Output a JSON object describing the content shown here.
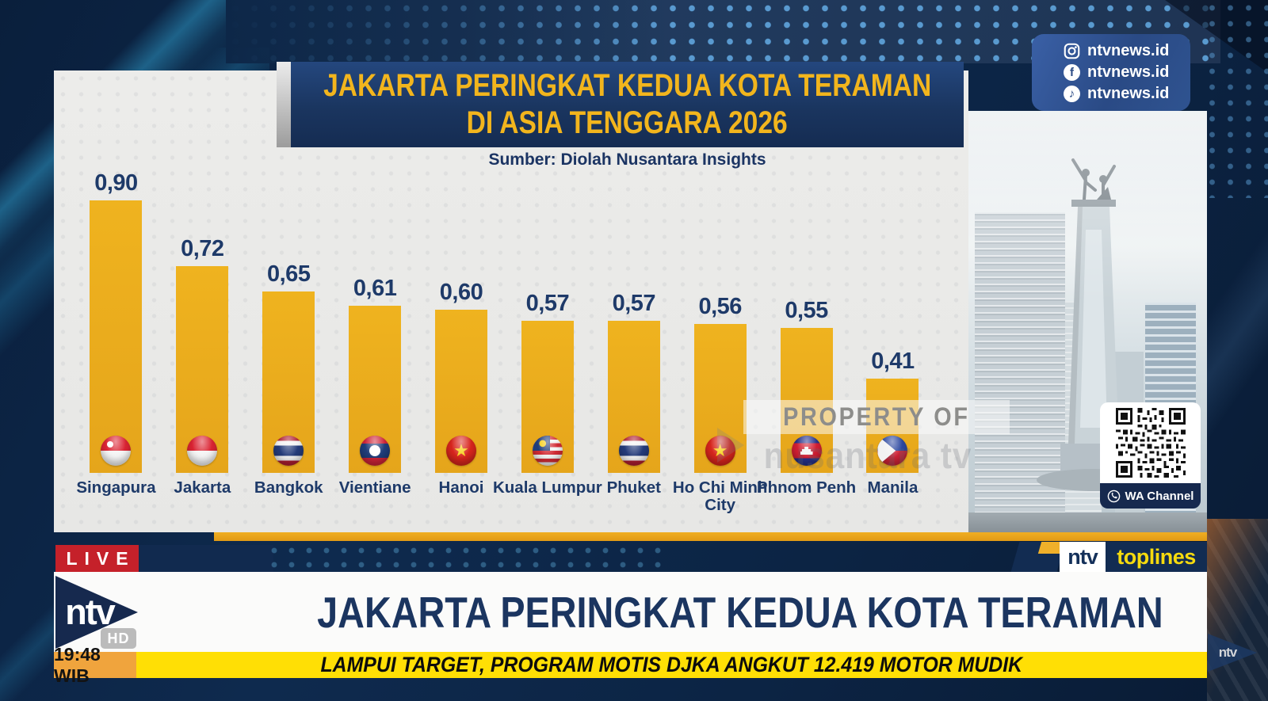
{
  "social_panel": {
    "items": [
      {
        "platform": "instagram",
        "handle": "ntvnews.id"
      },
      {
        "platform": "facebook",
        "handle": "ntvnews.id"
      },
      {
        "platform": "tiktok",
        "handle": "ntvnews.id"
      }
    ]
  },
  "infographic": {
    "title_line1": "JAKARTA PERINGKAT KEDUA KOTA TERAMAN",
    "title_line2": "DI ASIA TENGGARA 2026",
    "source": "Sumber: Diolah Nusantara Insights",
    "watermark_line1": "PROPERTY OF",
    "watermark_line2": "nusantara tv"
  },
  "chart_data": {
    "type": "bar",
    "title": "JAKARTA PERINGKAT KEDUA KOTA TERAMAN DI ASIA TENGGARA 2026",
    "source": "Sumber: Diolah Nusantara Insights",
    "categories": [
      "Singapura",
      "Jakarta",
      "Bangkok",
      "Vientiane",
      "Hanoi",
      "Kuala Lumpur",
      "Phuket",
      "Ho Chi Minh City",
      "Phnom Penh",
      "Manila"
    ],
    "values": [
      0.9,
      0.72,
      0.65,
      0.61,
      0.6,
      0.57,
      0.57,
      0.56,
      0.55,
      0.41
    ],
    "value_labels": [
      "0,90",
      "0,72",
      "0,65",
      "0,61",
      "0,60",
      "0,57",
      "0,57",
      "0,56",
      "0,55",
      "0,41"
    ],
    "label_lines": [
      [
        "Singapura"
      ],
      [
        "Jakarta"
      ],
      [
        "Bangkok"
      ],
      [
        "Vientiane"
      ],
      [
        "Hanoi"
      ],
      [
        "Kuala Lumpur"
      ],
      [
        "Phuket"
      ],
      [
        "Ho Chi Minh",
        "City"
      ],
      [
        "Phnom Penh"
      ],
      [
        "Manila"
      ]
    ],
    "flags": [
      "singapore",
      "indonesia",
      "thailand",
      "laos",
      "vietnam",
      "malaysia",
      "thailand",
      "vietnam",
      "cambodia",
      "philippines"
    ],
    "ylim": [
      0,
      0.9
    ],
    "grid": false,
    "legend": null,
    "bar_color": "#ECAD1D",
    "value_color": "#1E3A69"
  },
  "qr_panel": {
    "label": "WA Channel"
  },
  "lower_third": {
    "live_label": "LIVE",
    "channel_name": "ntv",
    "hd_label": "HD",
    "time": "19:48 WIB",
    "headline": "JAKARTA PERINGKAT KEDUA KOTA TERAMAN",
    "ticker": "LAMPUI TARGET, PROGRAM MOTIS DJKA ANGKUT 12.419 MOTOR MUDIK",
    "program_ntv": "ntv",
    "program_name": "toplines",
    "corner_logo": "ntv"
  },
  "colors": {
    "bar": "#ECAD1D",
    "accent_orange": "#E9A51C",
    "live_red": "#C5212A",
    "ticker_yellow": "#FFDF05",
    "time_orange": "#F0A43D",
    "navy": "#16294E",
    "title_yellow": "#F2B51D"
  }
}
